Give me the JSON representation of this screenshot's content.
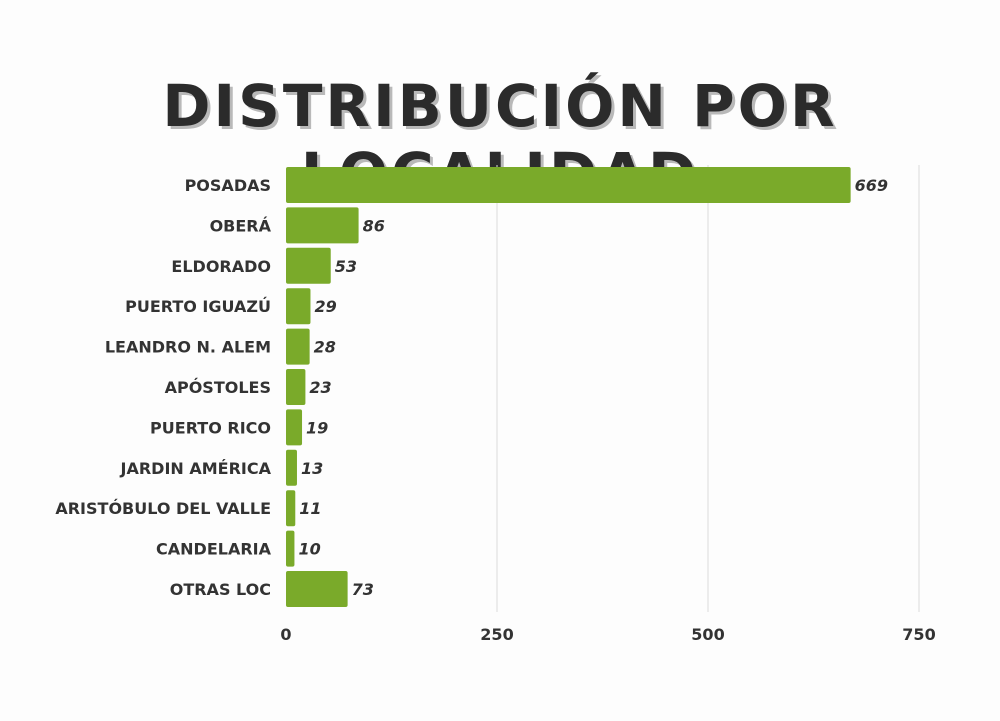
{
  "chart_data": {
    "type": "bar",
    "orientation": "horizontal",
    "title": "DISTRIBUCIÓN POR LOCALIDAD",
    "categories": [
      "POSADAS",
      "OBERÁ",
      "ELDORADO",
      "PUERTO IGUAZÚ",
      "LEANDRO N. ALEM",
      "APÓSTOLES",
      "PUERTO RICO",
      "JARDIN AMÉRICA",
      "ARISTÓBULO DEL VALLE",
      "CANDELARIA",
      "OTRAS LOC"
    ],
    "values": [
      669,
      86,
      53,
      29,
      28,
      23,
      19,
      13,
      11,
      10,
      73
    ],
    "xlim": [
      0,
      750
    ],
    "xticks": [
      0,
      250,
      500,
      750
    ],
    "grid": true,
    "bar_color": "#7aaa2a",
    "data_labels": true
  }
}
